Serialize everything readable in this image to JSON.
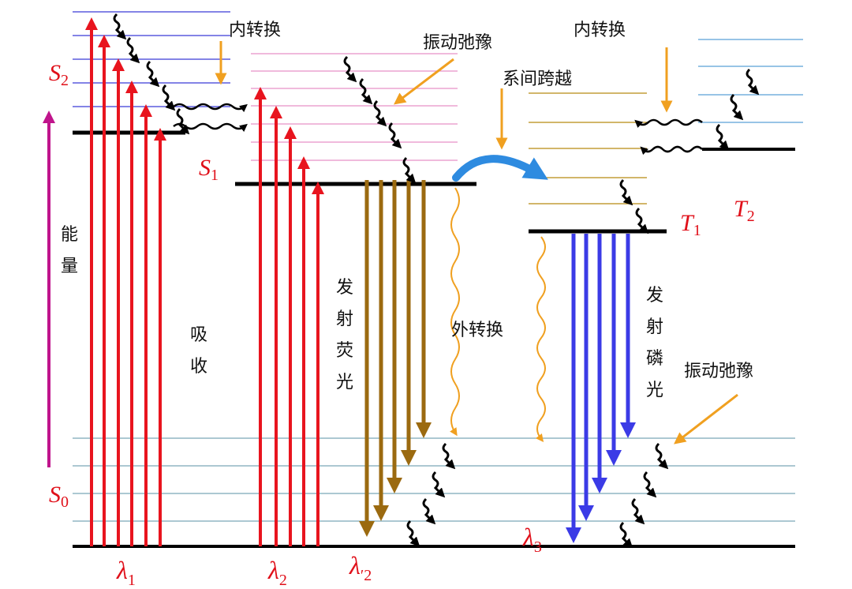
{
  "colors": {
    "absorption": "#e8141e",
    "fluorescence": "#9b6a10",
    "phosphorescence": "#3b3be6",
    "external_conversion": "#f0a020",
    "annotation_arrow": "#f0a020",
    "energy_axis": "#c0148c",
    "isc_arrow": "#2e8be0",
    "level_thick": "#000000",
    "s2_sublevel": "#3a3ad8",
    "s1_sublevel": "#e890c8",
    "t1_sublevel": "#b88a10",
    "t2_sublevel": "#5aa0d8",
    "s0_sublevel": "#7aa6b8",
    "relaxation": "#000000"
  },
  "labels": {
    "internal_conversion_left": "内转换",
    "vibrational_relaxation_top": "振动弛豫",
    "intersystem_crossing": "系间跨越",
    "internal_conversion_right": "内转换",
    "energy": "能量",
    "absorption": "吸收",
    "fluorescence": "发射荧光",
    "external_conversion": "外转换",
    "phosphorescence": "发射磷光",
    "vibrational_relaxation_bottom": "振动弛豫"
  },
  "states": {
    "s2": {
      "letter": "S",
      "sub": "2"
    },
    "s1": {
      "letter": "S",
      "sub": "1"
    },
    "s0": {
      "letter": "S",
      "sub": "0"
    },
    "t1": {
      "letter": "T",
      "sub": "1"
    },
    "t2": {
      "letter": "T",
      "sub": "2"
    }
  },
  "wavelengths": {
    "l1": {
      "sym": "λ",
      "sub": "1"
    },
    "l2": {
      "sym": "λ",
      "sub": "2"
    },
    "l2p": {
      "sym": "λ",
      "sub": "′2"
    },
    "l3": {
      "sym": "λ",
      "sub": "3"
    }
  },
  "icons": {
    "relaxation": "squiggle-down-arrow",
    "internal_conversion": "wavy-horizontal-arrow",
    "isc": "curved-arrow"
  }
}
